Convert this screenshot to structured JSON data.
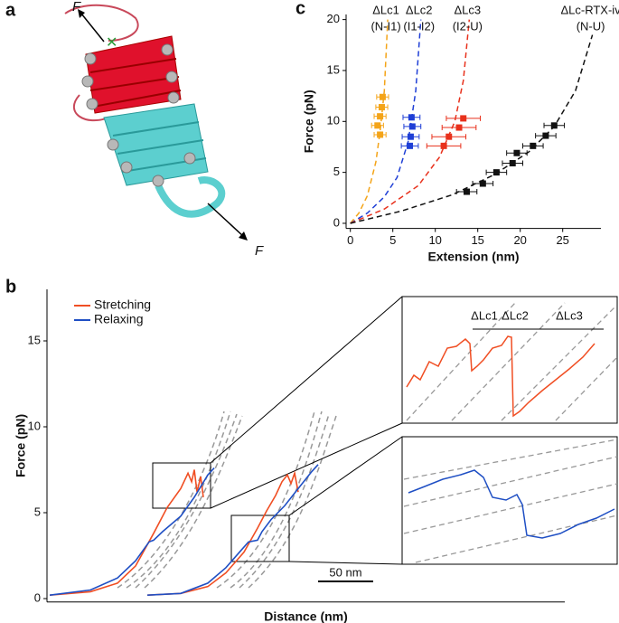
{
  "panel_a": {
    "label": "a",
    "force_labels": [
      "F",
      "F"
    ]
  },
  "chart_data": [
    {
      "type": "scatter",
      "label": "c",
      "xlabel": "Extension (nm)",
      "ylabel": "Force (pN)",
      "xlim": [
        -0.5,
        29.5
      ],
      "ylim": [
        -0.5,
        20.5
      ],
      "xticks": [
        0,
        5,
        10,
        15,
        20,
        25
      ],
      "yticks": [
        0,
        5,
        10,
        15,
        20
      ],
      "series": [
        {
          "name": "ΔLc1",
          "detail": "(N-I1)",
          "color": "#f4a418",
          "x": [
            3.8,
            3.7,
            3.5,
            3.2,
            3.5
          ],
          "values": [
            12.4,
            11.4,
            10.5,
            9.6,
            8.7
          ],
          "xerr": [
            0.7,
            0.7,
            0.7,
            0.7,
            0.7
          ],
          "fit_x": [
            0,
            1,
            2,
            3,
            3.5,
            4,
            4.4
          ],
          "fit_y": [
            0,
            1,
            2.7,
            6,
            9,
            13,
            20
          ]
        },
        {
          "name": "ΔLc2",
          "detail": "(I1-I2)",
          "color": "#1f3fd6",
          "x": [
            7.2,
            7.3,
            7.1,
            7.0
          ],
          "values": [
            10.4,
            9.5,
            8.5,
            7.6
          ],
          "xerr": [
            1.0,
            1.0,
            1.0,
            1.0
          ],
          "fit_x": [
            0,
            2,
            4,
            5.5,
            6.8,
            7.7,
            8.3
          ],
          "fit_y": [
            0,
            1,
            2.6,
            4.5,
            8,
            13,
            20
          ]
        },
        {
          "name": "ΔLc3",
          "detail": "(I2-U)",
          "color": "#e8311c",
          "x": [
            13.3,
            12.8,
            11.6,
            11.0
          ],
          "values": [
            10.3,
            9.4,
            8.5,
            7.6
          ],
          "xerr": [
            2.0,
            2.0,
            2.0,
            2.0
          ],
          "fit_x": [
            0,
            4,
            8,
            10.5,
            12.3,
            13.3,
            14
          ],
          "fit_y": [
            0,
            1.4,
            3.7,
            6.5,
            10,
            14,
            20
          ]
        },
        {
          "name": "ΔLc-RTX-iv",
          "detail": "(N-U)",
          "color": "#111111",
          "x": [
            24.0,
            23.0,
            21.5,
            19.6,
            19.1,
            17.2,
            15.6,
            13.7
          ],
          "values": [
            9.6,
            8.6,
            7.6,
            6.9,
            5.9,
            5.0,
            3.9,
            3.1
          ],
          "xerr": [
            1.2,
            1.2,
            1.2,
            1.2,
            1.2,
            1.2,
            1.2,
            1.2
          ],
          "fit_x": [
            0,
            6,
            12,
            17,
            21,
            24,
            26.5,
            28.5
          ],
          "fit_y": [
            0,
            1.2,
            2.8,
            4.8,
            7,
            9.5,
            13,
            18.5
          ]
        }
      ]
    },
    {
      "type": "line",
      "label": "b",
      "xlabel": "Distance (nm)",
      "ylabel": "Force (pN)",
      "xlim": [
        0,
        470
      ],
      "ylim": [
        -0.2,
        18
      ],
      "yticks": [
        0,
        5,
        10,
        15
      ],
      "scale_bar": {
        "length": 50,
        "label": "50 nm"
      },
      "inset_labels": [
        "ΔLc1",
        "ΔLc2",
        "ΔLc3"
      ],
      "series": [
        {
          "name": "Stretching",
          "color": "#f04e23",
          "traces": [
            {
              "x": [
                2.5,
                39.4,
                64,
                80.4,
                96.8,
                109.1,
                121.4,
                128,
                131.3,
                133.7,
                136.2,
                139.5,
                141.9
              ],
              "values": [
                0.2,
                0.4,
                0.9,
                1.9,
                3.8,
                5.3,
                6.4,
                7.3,
                6.8,
                7.5,
                6.2,
                7.1,
                5.9
              ]
            },
            {
              "x": [
                91.1,
                121.4,
                146,
                162.4,
                178.8,
                191.1,
                199.3,
                207.5,
                213.3,
                218.2,
                221.5,
                224.8,
                228
              ],
              "values": [
                0.2,
                0.3,
                0.7,
                1.5,
                2.7,
                4.1,
                5.1,
                6.0,
                6.8,
                7.2,
                6.7,
                7.3,
                6.2
              ]
            }
          ]
        },
        {
          "name": "Relaxing",
          "color": "#1f4fc4",
          "traces": [
            {
              "x": [
                2.5,
                39.4,
                64,
                80.4,
                92.7,
                96.8,
                105,
                121.4,
                133.7,
                146,
                151.8
              ],
              "values": [
                0.2,
                0.5,
                1.2,
                2.2,
                3.3,
                3.4,
                3.9,
                4.8,
                5.9,
                7.2,
                7.6
              ]
            },
            {
              "x": [
                91.1,
                121.4,
                146,
                162.4,
                174.7,
                182.9,
                191.1,
                195.2,
                203.4,
                215.7,
                228,
                240.4,
                246.1
              ],
              "values": [
                0.2,
                0.3,
                0.9,
                1.8,
                2.7,
                3.3,
                3.4,
                3.9,
                4.6,
                5.4,
                6.4,
                7.4,
                7.8
              ]
            }
          ]
        }
      ]
    }
  ]
}
